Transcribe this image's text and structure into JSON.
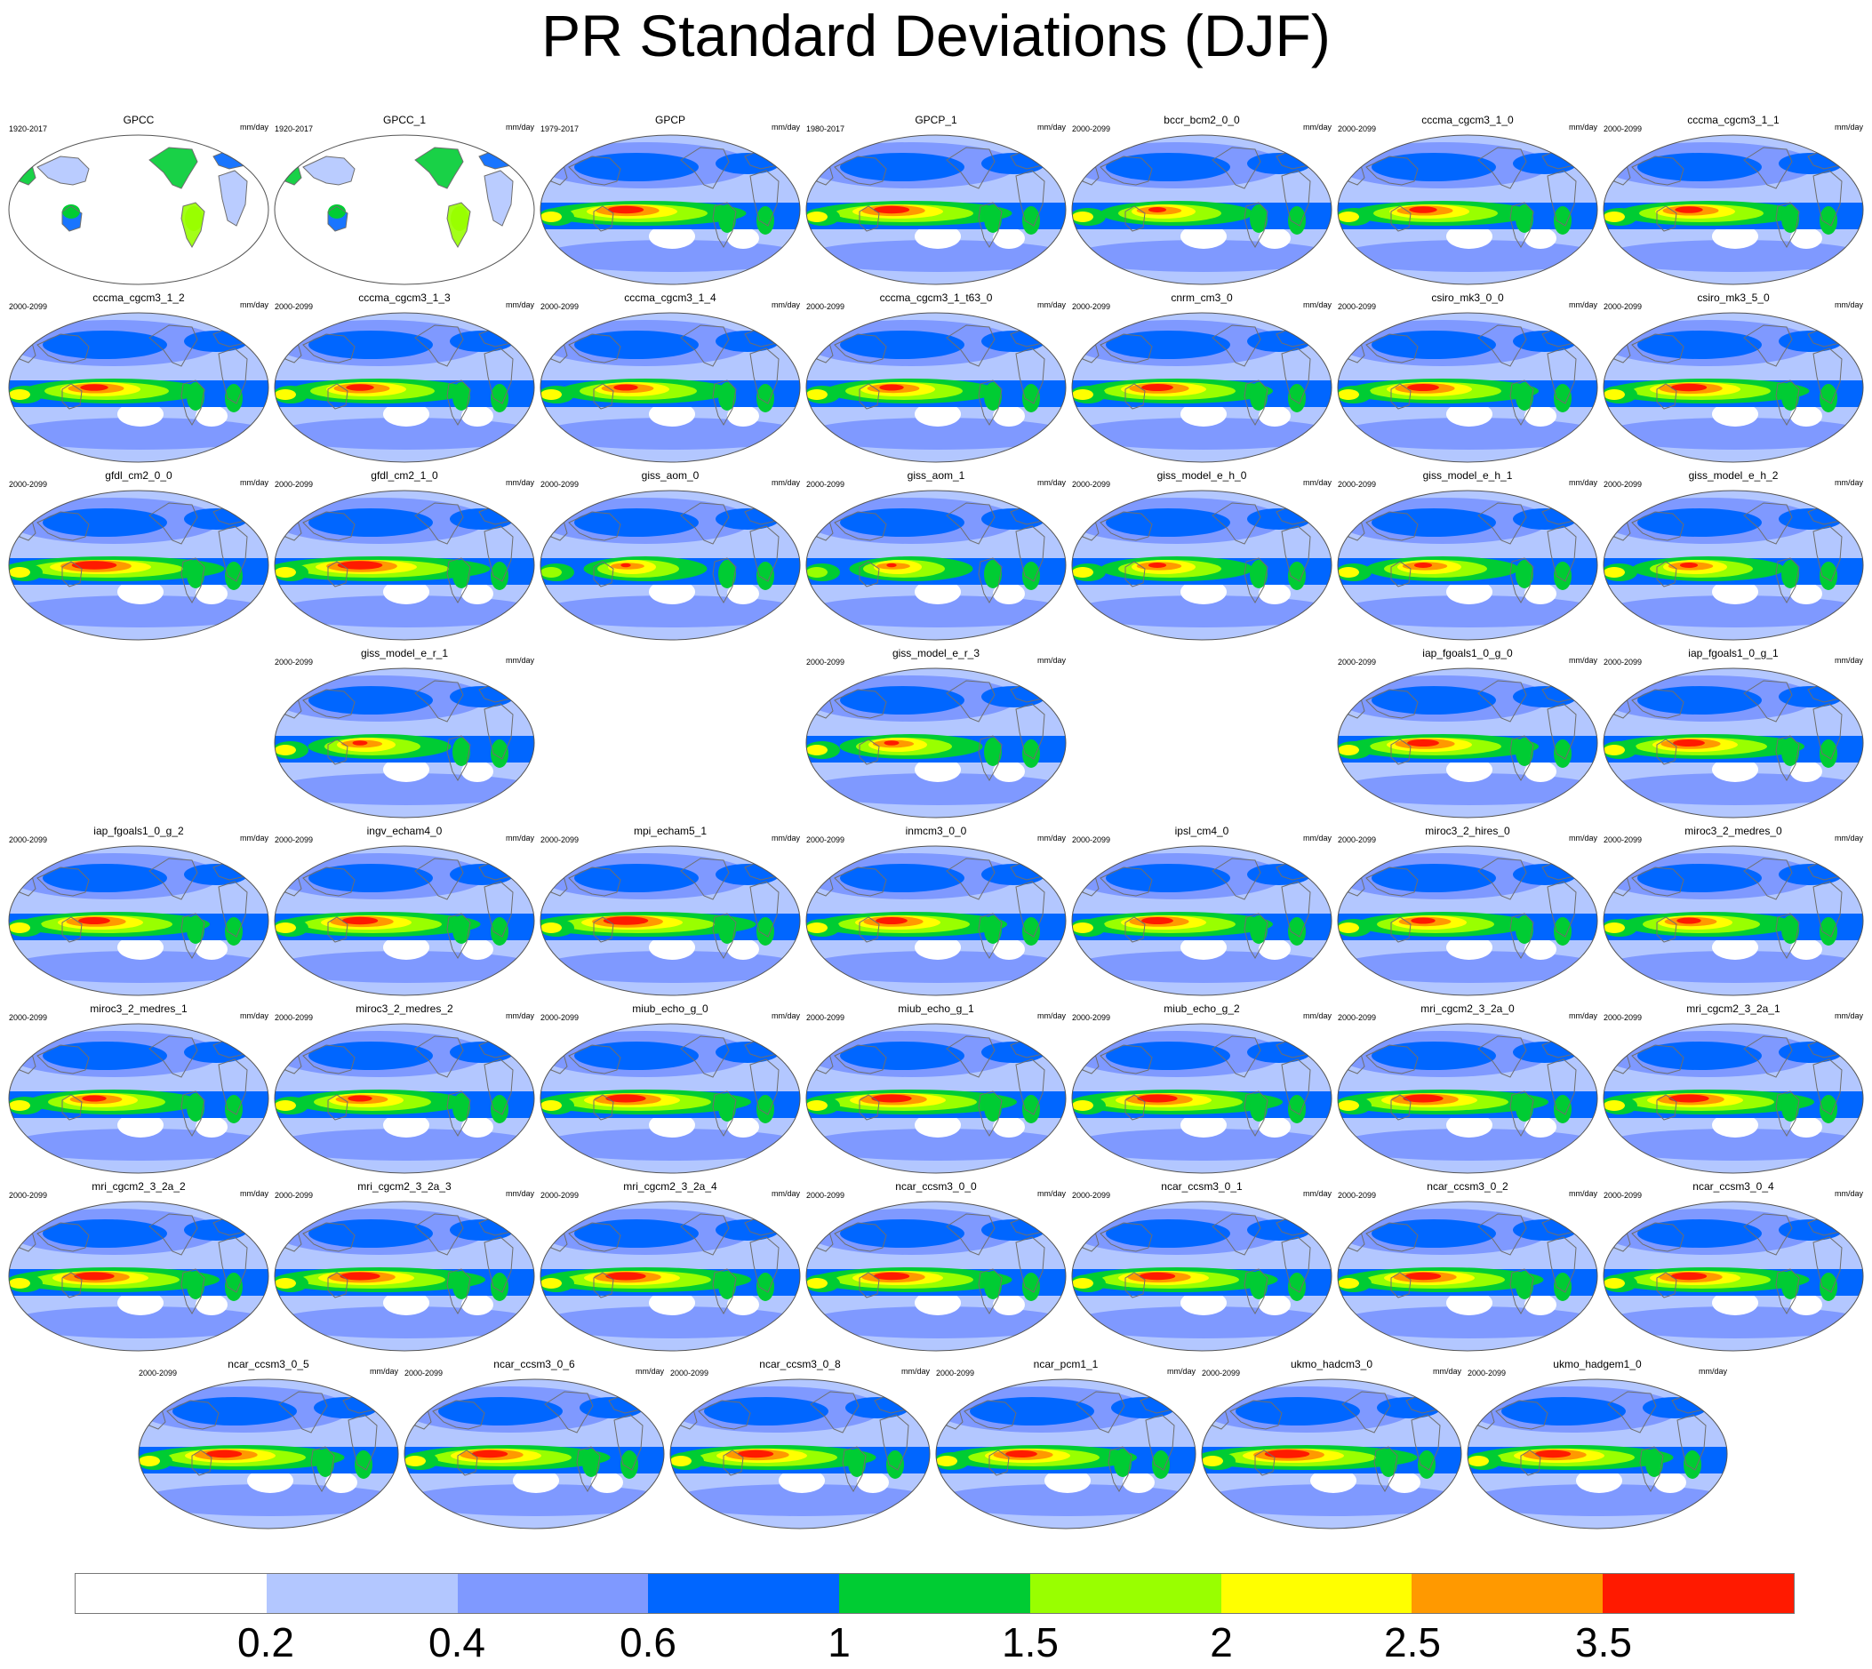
{
  "title": "PR Standard Deviations (DJF)",
  "colors": {
    "ocean_outline": "#555555",
    "land_outline": "#6e6e6e",
    "levels": [
      "#ffffff",
      "#b3c7ff",
      "#7f99ff",
      "#0066ff",
      "#00cc33",
      "#99ff00",
      "#ffff00",
      "#ff9900",
      "#ff1a00"
    ]
  },
  "chart_data": {
    "type": "heatmap",
    "title": "PR Standard Deviations (DJF)",
    "units": "mm/day",
    "colorbar": {
      "labels": [
        "0.2",
        "0.4",
        "0.6",
        "1",
        "1.5",
        "2",
        "2.5",
        "3.5"
      ],
      "colors": [
        "#ffffff",
        "#b3c7ff",
        "#7f99ff",
        "#0066ff",
        "#00cc33",
        "#99ff00",
        "#ffff00",
        "#ff9900",
        "#ff1a00"
      ]
    },
    "panels": [
      {
        "name": "GPCC",
        "years": "1920-2017",
        "units": "mm/day",
        "intensity": 0.35,
        "land_only": true,
        "row": 0,
        "col": 0
      },
      {
        "name": "GPCC_1",
        "years": "1920-2017",
        "units": "mm/day",
        "intensity": 0.35,
        "land_only": true,
        "row": 0,
        "col": 1
      },
      {
        "name": "GPCP",
        "years": "1979-2017",
        "units": "mm/day",
        "intensity": 0.85,
        "row": 0,
        "col": 2
      },
      {
        "name": "GPCP_1",
        "years": "1980-2017",
        "units": "mm/day",
        "intensity": 0.85,
        "row": 0,
        "col": 3
      },
      {
        "name": "bccr_bcm2_0_0",
        "years": "2000-2099",
        "units": "mm/day",
        "intensity": 0.6,
        "row": 0,
        "col": 4
      },
      {
        "name": "cccma_cgcm3_1_0",
        "years": "2000-2099",
        "units": "mm/day",
        "intensity": 0.75,
        "row": 0,
        "col": 5
      },
      {
        "name": "cccma_cgcm3_1_1",
        "years": "2000-2099",
        "units": "mm/day",
        "intensity": 0.75,
        "row": 0,
        "col": 6
      },
      {
        "name": "cccma_cgcm3_1_2",
        "years": "2000-2099",
        "units": "mm/day",
        "intensity": 0.75,
        "row": 1,
        "col": 0
      },
      {
        "name": "cccma_cgcm3_1_3",
        "years": "2000-2099",
        "units": "mm/day",
        "intensity": 0.75,
        "row": 1,
        "col": 1
      },
      {
        "name": "cccma_cgcm3_1_4",
        "years": "2000-2099",
        "units": "mm/day",
        "intensity": 0.7,
        "row": 1,
        "col": 2
      },
      {
        "name": "cccma_cgcm3_1_t63_0",
        "years": "2000-2099",
        "units": "mm/day",
        "intensity": 0.7,
        "row": 1,
        "col": 3
      },
      {
        "name": "cnrm_cm3_0",
        "years": "2000-2099",
        "units": "mm/day",
        "intensity": 0.8,
        "row": 1,
        "col": 4
      },
      {
        "name": "csiro_mk3_0_0",
        "years": "2000-2099",
        "units": "mm/day",
        "intensity": 0.8,
        "row": 1,
        "col": 5
      },
      {
        "name": "csiro_mk3_5_0",
        "years": "2000-2099",
        "units": "mm/day",
        "intensity": 0.85,
        "row": 1,
        "col": 6
      },
      {
        "name": "gfdl_cm2_0_0",
        "years": "2000-2099",
        "units": "mm/day",
        "intensity": 0.95,
        "row": 2,
        "col": 0
      },
      {
        "name": "gfdl_cm2_1_0",
        "years": "2000-2099",
        "units": "mm/day",
        "intensity": 0.95,
        "row": 2,
        "col": 1
      },
      {
        "name": "giss_aom_0",
        "years": "2000-2099",
        "units": "mm/day",
        "intensity": 0.45,
        "row": 2,
        "col": 2
      },
      {
        "name": "giss_aom_1",
        "years": "2000-2099",
        "units": "mm/day",
        "intensity": 0.45,
        "row": 2,
        "col": 3
      },
      {
        "name": "giss_model_e_h_0",
        "years": "2000-2099",
        "units": "mm/day",
        "intensity": 0.6,
        "row": 2,
        "col": 4
      },
      {
        "name": "giss_model_e_h_1",
        "years": "2000-2099",
        "units": "mm/day",
        "intensity": 0.6,
        "row": 2,
        "col": 5
      },
      {
        "name": "giss_model_e_h_2",
        "years": "2000-2099",
        "units": "mm/day",
        "intensity": 0.6,
        "row": 2,
        "col": 6
      },
      {
        "name": "giss_model_e_r_1",
        "years": "2000-2099",
        "units": "mm/day",
        "intensity": 0.55,
        "row": 3,
        "col": 1
      },
      {
        "name": "giss_model_e_r_3",
        "years": "2000-2099",
        "units": "mm/day",
        "intensity": 0.55,
        "row": 3,
        "col": 3
      },
      {
        "name": "iap_fgoals1_0_g_0",
        "years": "2000-2099",
        "units": "mm/day",
        "intensity": 0.8,
        "row": 3,
        "col": 5
      },
      {
        "name": "iap_fgoals1_0_g_1",
        "years": "2000-2099",
        "units": "mm/day",
        "intensity": 0.8,
        "row": 3,
        "col": 6
      },
      {
        "name": "iap_fgoals1_0_g_2",
        "years": "2000-2099",
        "units": "mm/day",
        "intensity": 0.8,
        "row": 4,
        "col": 0
      },
      {
        "name": "ingv_echam4_0",
        "years": "2000-2099",
        "units": "mm/day",
        "intensity": 0.85,
        "row": 4,
        "col": 1
      },
      {
        "name": "mpi_echam5_1",
        "years": "2000-2099",
        "units": "mm/day",
        "intensity": 0.95,
        "row": 4,
        "col": 2
      },
      {
        "name": "inmcm3_0_0",
        "years": "2000-2099",
        "units": "mm/day",
        "intensity": 0.8,
        "row": 4,
        "col": 3
      },
      {
        "name": "ipsl_cm4_0",
        "years": "2000-2099",
        "units": "mm/day",
        "intensity": 0.8,
        "row": 4,
        "col": 4
      },
      {
        "name": "miroc3_2_hires_0",
        "years": "2000-2099",
        "units": "mm/day",
        "intensity": 0.7,
        "row": 4,
        "col": 5
      },
      {
        "name": "miroc3_2_medres_0",
        "years": "2000-2099",
        "units": "mm/day",
        "intensity": 0.7,
        "row": 4,
        "col": 6
      },
      {
        "name": "miroc3_2_medres_1",
        "years": "2000-2099",
        "units": "mm/day",
        "intensity": 0.7,
        "row": 5,
        "col": 0
      },
      {
        "name": "miroc3_2_medres_2",
        "years": "2000-2099",
        "units": "mm/day",
        "intensity": 0.7,
        "row": 5,
        "col": 1
      },
      {
        "name": "miub_echo_g_0",
        "years": "2000-2099",
        "units": "mm/day",
        "intensity": 0.9,
        "row": 5,
        "col": 2
      },
      {
        "name": "miub_echo_g_1",
        "years": "2000-2099",
        "units": "mm/day",
        "intensity": 0.9,
        "row": 5,
        "col": 3
      },
      {
        "name": "miub_echo_g_2",
        "years": "2000-2099",
        "units": "mm/day",
        "intensity": 0.9,
        "row": 5,
        "col": 4
      },
      {
        "name": "mri_cgcm2_3_2a_0",
        "years": "2000-2099",
        "units": "mm/day",
        "intensity": 0.9,
        "row": 5,
        "col": 5
      },
      {
        "name": "mri_cgcm2_3_2a_1",
        "years": "2000-2099",
        "units": "mm/day",
        "intensity": 0.9,
        "row": 5,
        "col": 6
      },
      {
        "name": "mri_cgcm2_3_2a_2",
        "years": "2000-2099",
        "units": "mm/day",
        "intensity": 0.9,
        "row": 6,
        "col": 0
      },
      {
        "name": "mri_cgcm2_3_2a_3",
        "years": "2000-2099",
        "units": "mm/day",
        "intensity": 0.9,
        "row": 6,
        "col": 1
      },
      {
        "name": "mri_cgcm2_3_2a_4",
        "years": "2000-2099",
        "units": "mm/day",
        "intensity": 0.9,
        "row": 6,
        "col": 2
      },
      {
        "name": "ncar_ccsm3_0_0",
        "years": "2000-2099",
        "units": "mm/day",
        "intensity": 0.85,
        "row": 6,
        "col": 3
      },
      {
        "name": "ncar_ccsm3_0_1",
        "years": "2000-2099",
        "units": "mm/day",
        "intensity": 0.85,
        "row": 6,
        "col": 4
      },
      {
        "name": "ncar_ccsm3_0_2",
        "years": "2000-2099",
        "units": "mm/day",
        "intensity": 0.85,
        "row": 6,
        "col": 5
      },
      {
        "name": "ncar_ccsm3_0_4",
        "years": "2000-2099",
        "units": "mm/day",
        "intensity": 0.85,
        "row": 6,
        "col": 6
      },
      {
        "name": "ncar_ccsm3_0_5",
        "years": "2000-2099",
        "units": "mm/day",
        "intensity": 0.85,
        "row": 7,
        "col": 0
      },
      {
        "name": "ncar_ccsm3_0_6",
        "years": "2000-2099",
        "units": "mm/day",
        "intensity": 0.85,
        "row": 7,
        "col": 1
      },
      {
        "name": "ncar_ccsm3_0_8",
        "years": "2000-2099",
        "units": "mm/day",
        "intensity": 0.85,
        "row": 7,
        "col": 2
      },
      {
        "name": "ncar_pcm1_1",
        "years": "2000-2099",
        "units": "mm/day",
        "intensity": 0.8,
        "row": 7,
        "col": 3
      },
      {
        "name": "ukmo_hadcm3_0",
        "years": "2000-2099",
        "units": "mm/day",
        "intensity": 0.95,
        "row": 7,
        "col": 4
      },
      {
        "name": "ukmo_hadgem1_0",
        "years": "2000-2099",
        "units": "mm/day",
        "intensity": 0.85,
        "row": 7,
        "col": 5
      }
    ]
  }
}
